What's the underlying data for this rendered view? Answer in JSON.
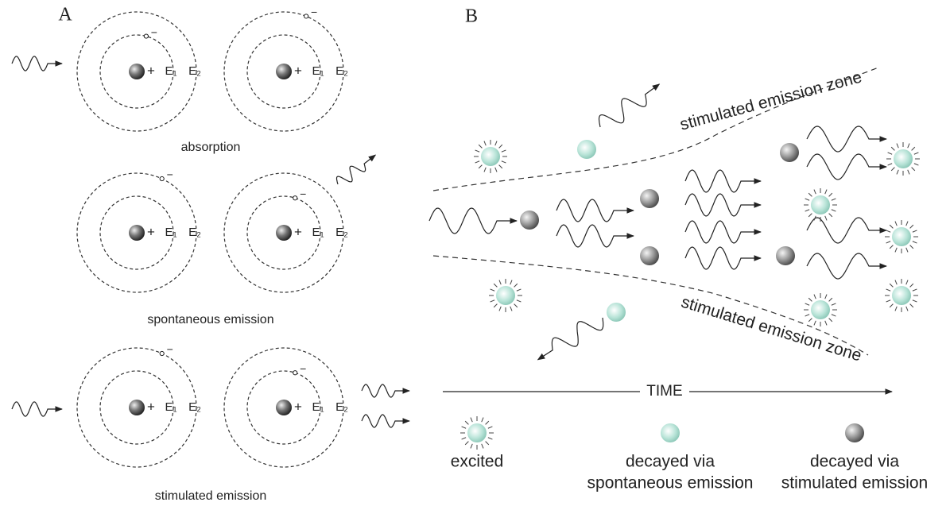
{
  "panel_a": {
    "label": "A",
    "rows": [
      {
        "caption": "absorption"
      },
      {
        "caption": "spontaneous emission"
      },
      {
        "caption": "stimulated emission"
      }
    ],
    "labels": {
      "nucleus": "+",
      "electron": "−",
      "level_1": "E₁",
      "level_2": "E₂"
    }
  },
  "panel_b": {
    "label": "B",
    "zone_labels": [
      "stimulated emission zone",
      "stimulated emission zone"
    ],
    "axis_label": "TIME",
    "legend": [
      {
        "lines": [
          "excited"
        ]
      },
      {
        "lines": [
          "decayed via",
          "spontaneous emission"
        ]
      },
      {
        "lines": [
          "decayed via",
          "stimulated emission"
        ]
      }
    ]
  }
}
